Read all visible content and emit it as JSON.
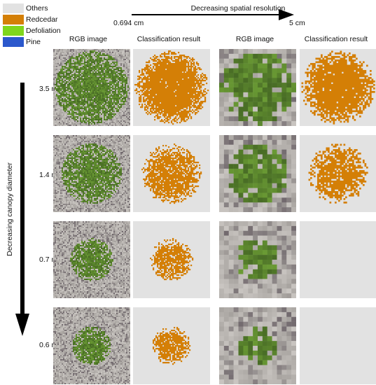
{
  "legend": {
    "items": [
      {
        "label": "Others",
        "color": "#e2e2e2"
      },
      {
        "label": "Redcedar",
        "color": "#d47f06"
      },
      {
        "label": "Defoliation",
        "color": "#7fd61c"
      },
      {
        "label": "Pine",
        "color": "#2b58cc"
      }
    ]
  },
  "resolution_axis": {
    "label": "Decreasing spatial resolution",
    "start": "0.694 cm",
    "end": "5 cm"
  },
  "canopy_axis": {
    "label": "Decreasing canopy diameter"
  },
  "columns": [
    "RGB image",
    "Classification result",
    "RGB image",
    "Classification result"
  ],
  "rows": [
    "3.5 m",
    "1.4 m",
    "0.7 m",
    "0.6 m"
  ],
  "colors": {
    "redcedar": "#d47f06",
    "background": "#e2e2e2",
    "ground": "#a8a4a0",
    "foliage": "#6a9a34"
  }
}
